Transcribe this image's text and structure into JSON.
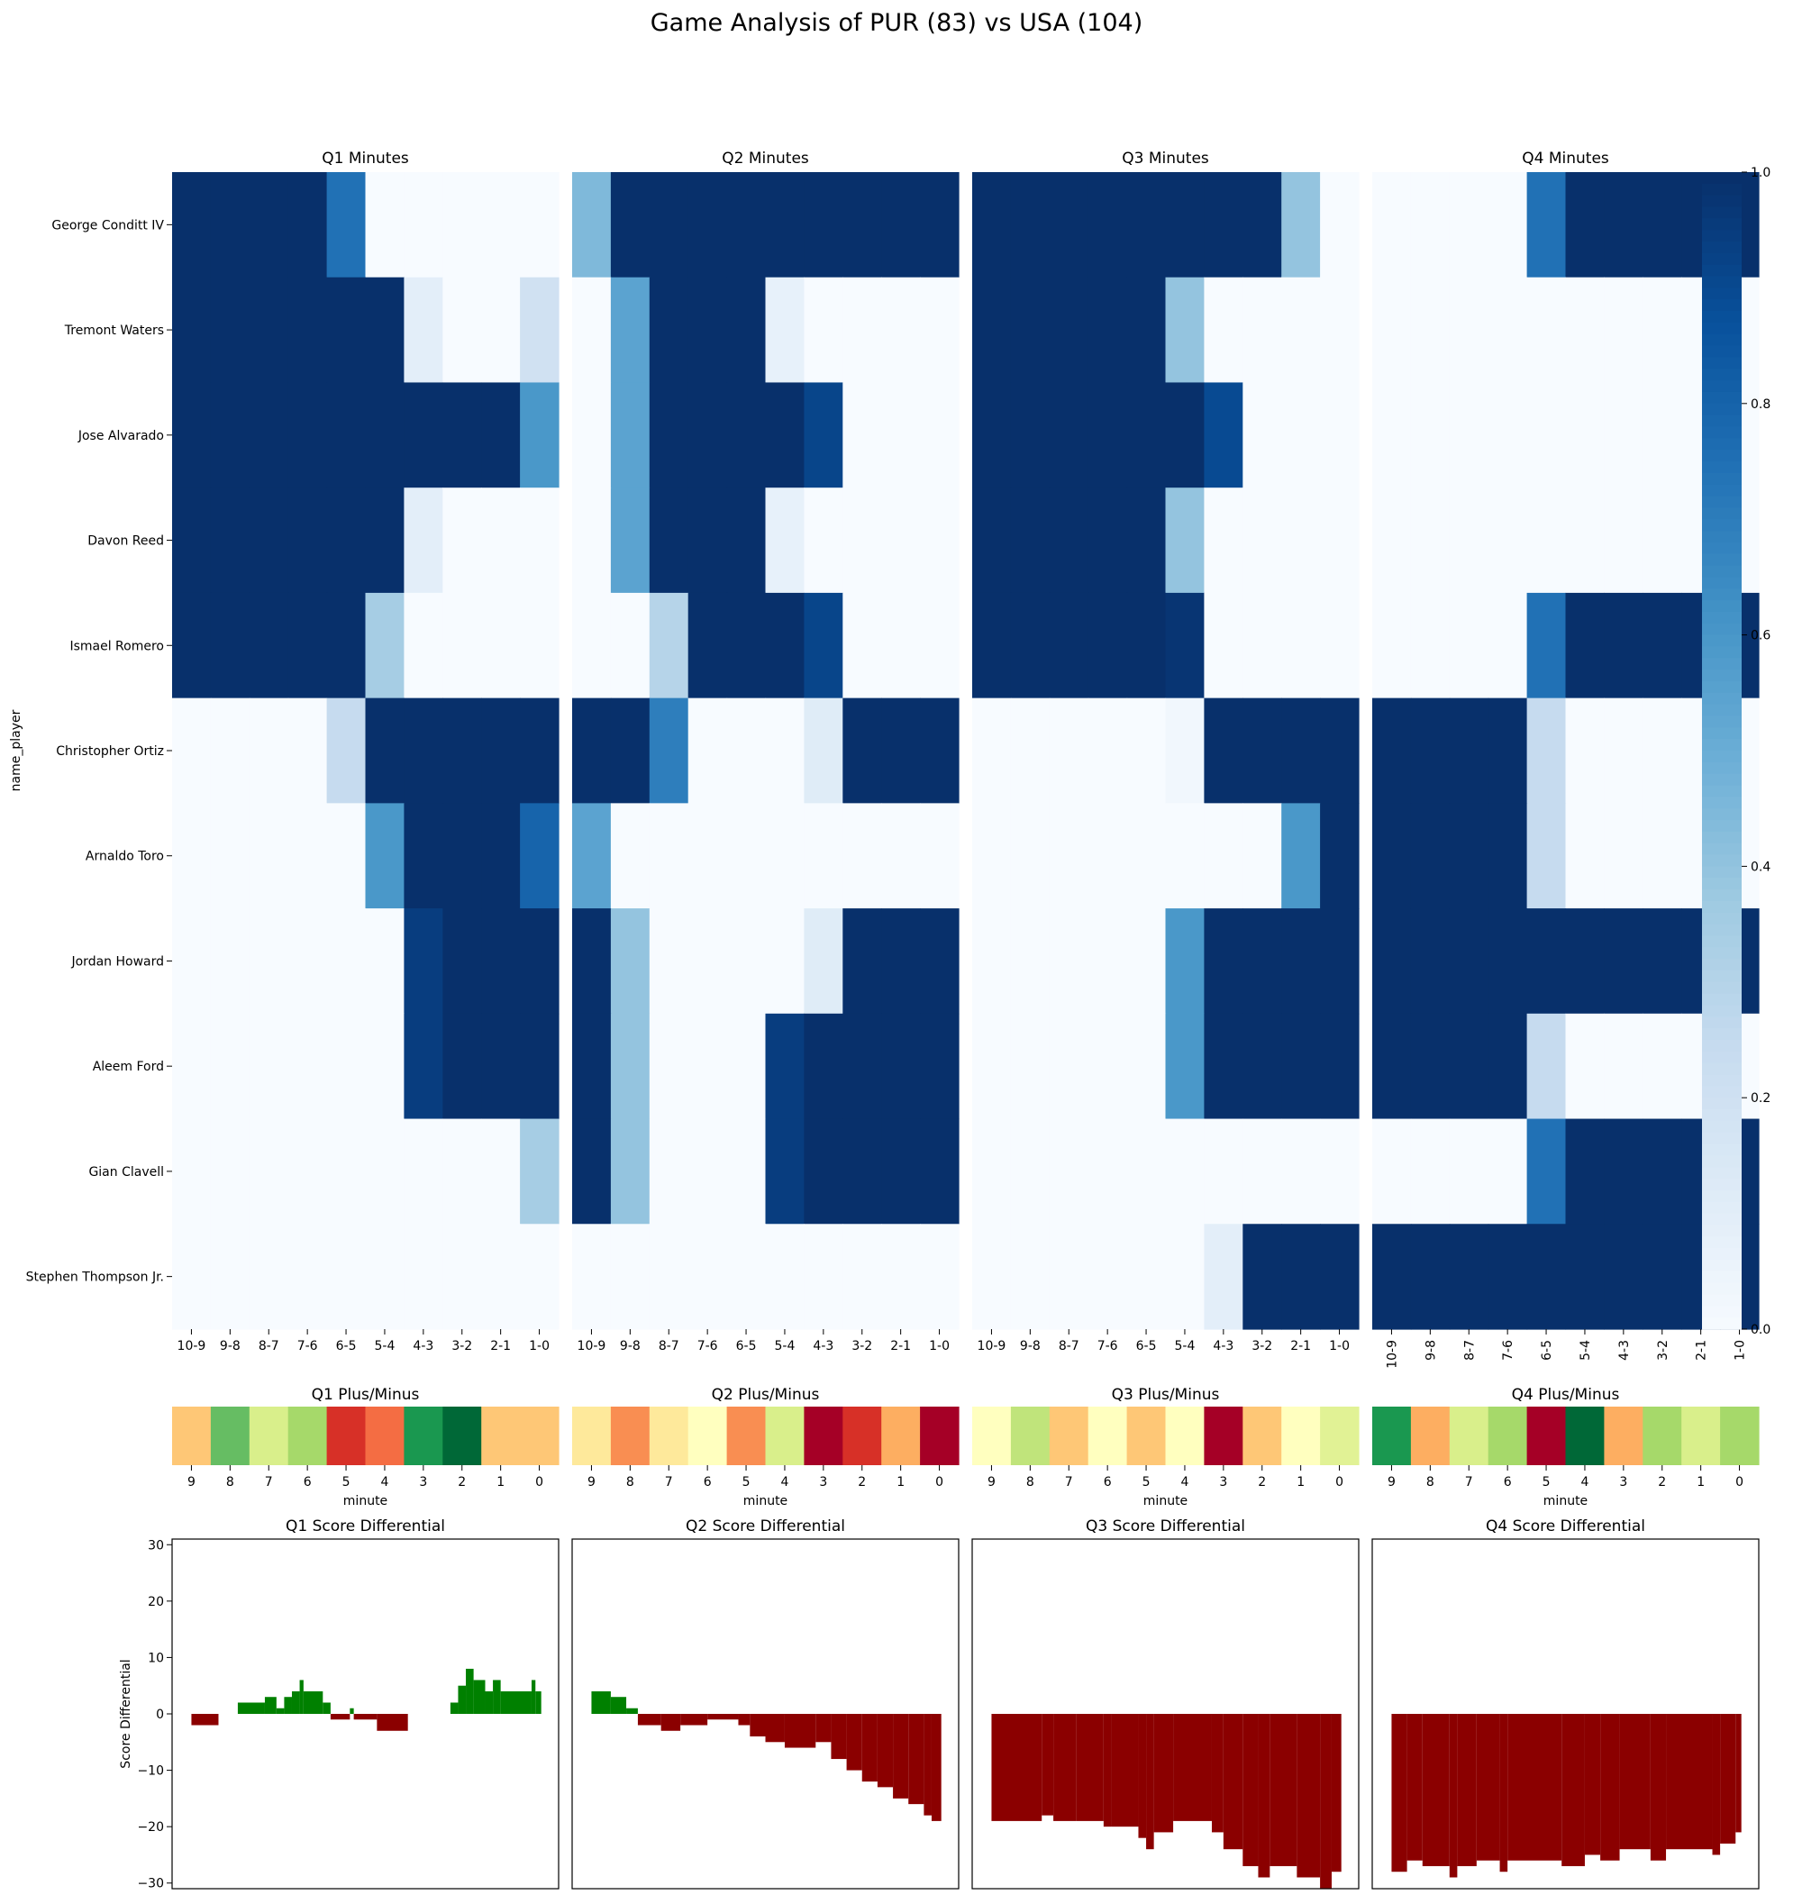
{
  "title": "Game Analysis of PUR (83) vs USA (104)",
  "colors": {
    "blues_scale": [
      "#f7fbff",
      "#deebf7",
      "#c6dbef",
      "#9ecae1",
      "#6baed6",
      "#4292c6",
      "#2171b5",
      "#08519c",
      "#08306b"
    ],
    "pm_scale": [
      "#a50026",
      "#d73027",
      "#f46d43",
      "#fdae61",
      "#fee08b",
      "#ffffbf",
      "#d9ef8b",
      "#a6d96a",
      "#66bd63",
      "#1a9850",
      "#006837"
    ],
    "diff_positive": "#008000",
    "diff_negative": "#8b0000"
  },
  "chart_data": [
    {
      "type": "heatmap",
      "name": "minutes",
      "titles": [
        "Q1 Minutes",
        "Q2 Minutes",
        "Q3 Minutes",
        "Q4 Minutes"
      ],
      "ylabel": "name_player",
      "players": [
        "George Conditt IV",
        "Tremont Waters",
        "Jose Alvarado",
        "Davon Reed",
        "Ismael Romero",
        "Christopher Ortiz",
        "Arnaldo Toro",
        "Jordan Howard",
        "Aleem Ford",
        "Gian Clavell",
        "Stephen Thompson Jr."
      ],
      "minutes": [
        "10-9",
        "9-8",
        "8-7",
        "7-6",
        "6-5",
        "5-4",
        "4-3",
        "3-2",
        "2-1",
        "1-0"
      ],
      "colorbar": {
        "min": 0.0,
        "max": 1.0,
        "ticks": [
          "0.0",
          "0.2",
          "0.4",
          "0.6",
          "0.8",
          "1.0"
        ]
      },
      "quarters": [
        [
          [
            1,
            1,
            1,
            1,
            0.75,
            0,
            0,
            0,
            0,
            0
          ],
          [
            1,
            1,
            1,
            1,
            1,
            1,
            0.1,
            0,
            0,
            0.2
          ],
          [
            1,
            1,
            1,
            1,
            1,
            1,
            1,
            1,
            1,
            0.6
          ],
          [
            1,
            1,
            1,
            1,
            1,
            1,
            0.1,
            0,
            0,
            0
          ],
          [
            1,
            1,
            1,
            1,
            1,
            0.35,
            0,
            0,
            0,
            0
          ],
          [
            0,
            0,
            0,
            0,
            0.25,
            1,
            1,
            1,
            1,
            1
          ],
          [
            0,
            0,
            0,
            0,
            0,
            0.6,
            1,
            1,
            1,
            0.8
          ],
          [
            0,
            0,
            0,
            0,
            0,
            0,
            0.95,
            1,
            1,
            1
          ],
          [
            0,
            0,
            0,
            0,
            0,
            0,
            0.95,
            1,
            1,
            1
          ],
          [
            0,
            0,
            0,
            0,
            0,
            0,
            0,
            0,
            0,
            0.35
          ],
          [
            0,
            0,
            0,
            0,
            0,
            0,
            0,
            0,
            0,
            0
          ]
        ],
        [
          [
            0.45,
            1,
            1,
            1,
            1,
            1,
            1,
            1,
            1,
            1
          ],
          [
            0,
            0.55,
            1,
            1,
            1,
            0.08,
            0,
            0,
            0,
            0
          ],
          [
            0,
            0.55,
            1,
            1,
            1,
            1,
            0.92,
            0,
            0,
            0
          ],
          [
            0,
            0.55,
            1,
            1,
            1,
            0.08,
            0,
            0,
            0,
            0
          ],
          [
            0,
            0,
            0.3,
            1,
            1,
            1,
            0.92,
            0,
            0,
            0
          ],
          [
            1,
            1,
            0.7,
            0,
            0,
            0,
            0.12,
            1,
            1,
            1
          ],
          [
            0.55,
            0,
            0,
            0,
            0,
            0,
            0,
            0,
            0,
            0
          ],
          [
            1,
            0.4,
            0,
            0,
            0,
            0,
            0.12,
            1,
            1,
            1
          ],
          [
            1,
            0.4,
            0,
            0,
            0,
            0.95,
            1,
            1,
            1,
            1
          ],
          [
            1,
            0.4,
            0,
            0,
            0,
            0.95,
            1,
            1,
            1,
            1
          ],
          [
            0,
            0,
            0,
            0,
            0,
            0,
            0,
            0,
            0,
            0
          ]
        ],
        [
          [
            1,
            1,
            1,
            1,
            1,
            1,
            1,
            1,
            0.4,
            0
          ],
          [
            1,
            1,
            1,
            1,
            1,
            0.4,
            0,
            0,
            0,
            0
          ],
          [
            1,
            1,
            1,
            1,
            1,
            1,
            0.9,
            0,
            0,
            0
          ],
          [
            1,
            1,
            1,
            1,
            1,
            0.4,
            0,
            0,
            0,
            0
          ],
          [
            1,
            1,
            1,
            1,
            1,
            0.98,
            0,
            0,
            0,
            0
          ],
          [
            0,
            0,
            0,
            0,
            0,
            0.03,
            1,
            1,
            1,
            1
          ],
          [
            0,
            0,
            0,
            0,
            0,
            0,
            0,
            0,
            0.6,
            1
          ],
          [
            0,
            0,
            0,
            0,
            0,
            0.6,
            1,
            1,
            1,
            1
          ],
          [
            0,
            0,
            0,
            0,
            0,
            0.6,
            1,
            1,
            1,
            1
          ],
          [
            0,
            0,
            0,
            0,
            0,
            0,
            0,
            0,
            0,
            0
          ],
          [
            0,
            0,
            0,
            0,
            0,
            0,
            0.1,
            1,
            1,
            1
          ]
        ],
        [
          [
            0,
            0,
            0,
            0,
            0.75,
            1,
            1,
            1,
            1,
            1
          ],
          [
            0,
            0,
            0,
            0,
            0,
            0,
            0,
            0,
            0,
            0
          ],
          [
            0,
            0,
            0,
            0,
            0,
            0,
            0,
            0,
            0,
            0
          ],
          [
            0,
            0,
            0,
            0,
            0,
            0,
            0,
            0,
            0,
            0
          ],
          [
            0,
            0,
            0,
            0,
            0.75,
            1,
            1,
            1,
            1,
            1
          ],
          [
            1,
            1,
            1,
            1,
            0.25,
            0,
            0,
            0,
            0,
            0
          ],
          [
            1,
            1,
            1,
            1,
            0.25,
            0,
            0,
            0,
            0,
            0
          ],
          [
            1,
            1,
            1,
            1,
            1,
            1,
            1,
            1,
            1,
            1
          ],
          [
            1,
            1,
            1,
            1,
            0.25,
            0,
            0,
            0,
            0,
            0
          ],
          [
            0,
            0,
            0,
            0,
            0.75,
            1,
            1,
            1,
            1,
            1
          ],
          [
            1,
            1,
            1,
            1,
            1,
            1,
            1,
            1,
            1,
            1
          ]
        ]
      ]
    },
    {
      "type": "heatmap",
      "name": "plus_minus",
      "titles": [
        "Q1 Plus/Minus",
        "Q2 Plus/Minus",
        "Q3 Plus/Minus",
        "Q4 Plus/Minus"
      ],
      "xlabel": "minute",
      "minutes": [
        "9",
        "8",
        "7",
        "6",
        "5",
        "4",
        "3",
        "2",
        "1",
        "0"
      ],
      "vmin": -5,
      "vmax": 5,
      "quarters": [
        [
          -1.5,
          3,
          1,
          2,
          -4,
          -3,
          4,
          5,
          -1.5,
          -1.5
        ],
        [
          -0.7,
          -2.5,
          -0.7,
          0,
          -2.5,
          1,
          -5,
          -4,
          -2,
          -5
        ],
        [
          0,
          1.5,
          -1.5,
          0,
          -1.5,
          0,
          -5,
          -1.5,
          0,
          0.8
        ],
        [
          4,
          -2,
          1,
          2,
          -5,
          5,
          -2,
          2,
          1,
          2
        ]
      ]
    },
    {
      "type": "bar",
      "name": "score_differential",
      "titles": [
        "Q1 Score Differential",
        "Q2 Score Differential",
        "Q3 Score Differential",
        "Q4 Score Differential"
      ],
      "ylabel": "Score Differential",
      "ylim": [
        -31,
        31
      ],
      "yticks": [
        -30,
        -20,
        -10,
        0,
        10,
        20,
        30
      ],
      "quarters": [
        [
          {
            "from": 0.05,
            "to": 0.12,
            "value": -2
          },
          {
            "from": 0.17,
            "to": 0.24,
            "value": 2
          },
          {
            "from": 0.24,
            "to": 0.27,
            "value": 3
          },
          {
            "from": 0.27,
            "to": 0.29,
            "value": 1
          },
          {
            "from": 0.29,
            "to": 0.31,
            "value": 3
          },
          {
            "from": 0.31,
            "to": 0.33,
            "value": 4
          },
          {
            "from": 0.33,
            "to": 0.34,
            "value": 6
          },
          {
            "from": 0.34,
            "to": 0.39,
            "value": 4
          },
          {
            "from": 0.39,
            "to": 0.41,
            "value": 2
          },
          {
            "from": 0.41,
            "to": 0.46,
            "value": -1
          },
          {
            "from": 0.46,
            "to": 0.47,
            "value": 1
          },
          {
            "from": 0.47,
            "to": 0.53,
            "value": -1
          },
          {
            "from": 0.53,
            "to": 0.61,
            "value": -3
          },
          {
            "from": 0.72,
            "to": 0.74,
            "value": 2
          },
          {
            "from": 0.74,
            "to": 0.76,
            "value": 5
          },
          {
            "from": 0.76,
            "to": 0.78,
            "value": 8
          },
          {
            "from": 0.78,
            "to": 0.81,
            "value": 6
          },
          {
            "from": 0.81,
            "to": 0.83,
            "value": 4
          },
          {
            "from": 0.83,
            "to": 0.85,
            "value": 6
          },
          {
            "from": 0.85,
            "to": 0.93,
            "value": 4
          },
          {
            "from": 0.93,
            "to": 0.94,
            "value": 6
          },
          {
            "from": 0.94,
            "to": 0.955,
            "value": 4
          }
        ],
        [
          {
            "from": 0.05,
            "to": 0.1,
            "value": 4
          },
          {
            "from": 0.1,
            "to": 0.14,
            "value": 3
          },
          {
            "from": 0.14,
            "to": 0.17,
            "value": 1
          },
          {
            "from": 0.17,
            "to": 0.23,
            "value": -2
          },
          {
            "from": 0.23,
            "to": 0.28,
            "value": -3
          },
          {
            "from": 0.28,
            "to": 0.35,
            "value": -2
          },
          {
            "from": 0.35,
            "to": 0.43,
            "value": -1
          },
          {
            "from": 0.43,
            "to": 0.46,
            "value": -2
          },
          {
            "from": 0.46,
            "to": 0.5,
            "value": -4
          },
          {
            "from": 0.5,
            "to": 0.55,
            "value": -5
          },
          {
            "from": 0.55,
            "to": 0.63,
            "value": -6
          },
          {
            "from": 0.63,
            "to": 0.67,
            "value": -5
          },
          {
            "from": 0.67,
            "to": 0.71,
            "value": -8
          },
          {
            "from": 0.71,
            "to": 0.75,
            "value": -10
          },
          {
            "from": 0.75,
            "to": 0.79,
            "value": -12
          },
          {
            "from": 0.79,
            "to": 0.83,
            "value": -13
          },
          {
            "from": 0.83,
            "to": 0.87,
            "value": -15
          },
          {
            "from": 0.87,
            "to": 0.91,
            "value": -16
          },
          {
            "from": 0.91,
            "to": 0.93,
            "value": -18
          },
          {
            "from": 0.93,
            "to": 0.955,
            "value": -19
          }
        ],
        [
          {
            "from": 0.05,
            "to": 0.18,
            "value": -19
          },
          {
            "from": 0.18,
            "to": 0.21,
            "value": -18
          },
          {
            "from": 0.21,
            "to": 0.27,
            "value": -19
          },
          {
            "from": 0.27,
            "to": 0.34,
            "value": -19
          },
          {
            "from": 0.34,
            "to": 0.36,
            "value": -20
          },
          {
            "from": 0.36,
            "to": 0.43,
            "value": -20
          },
          {
            "from": 0.43,
            "to": 0.45,
            "value": -22
          },
          {
            "from": 0.45,
            "to": 0.47,
            "value": -24
          },
          {
            "from": 0.47,
            "to": 0.52,
            "value": -21
          },
          {
            "from": 0.52,
            "to": 0.62,
            "value": -19
          },
          {
            "from": 0.62,
            "to": 0.65,
            "value": -21
          },
          {
            "from": 0.65,
            "to": 0.7,
            "value": -24
          },
          {
            "from": 0.7,
            "to": 0.74,
            "value": -27
          },
          {
            "from": 0.74,
            "to": 0.77,
            "value": -29
          },
          {
            "from": 0.77,
            "to": 0.84,
            "value": -27
          },
          {
            "from": 0.84,
            "to": 0.9,
            "value": -29
          },
          {
            "from": 0.9,
            "to": 0.93,
            "value": -31
          },
          {
            "from": 0.93,
            "to": 0.955,
            "value": -28
          }
        ],
        [
          {
            "from": 0.05,
            "to": 0.09,
            "value": -28
          },
          {
            "from": 0.09,
            "to": 0.13,
            "value": -26
          },
          {
            "from": 0.13,
            "to": 0.2,
            "value": -27
          },
          {
            "from": 0.2,
            "to": 0.22,
            "value": -29
          },
          {
            "from": 0.22,
            "to": 0.27,
            "value": -27
          },
          {
            "from": 0.27,
            "to": 0.33,
            "value": -26
          },
          {
            "from": 0.33,
            "to": 0.35,
            "value": -28
          },
          {
            "from": 0.35,
            "to": 0.49,
            "value": -26
          },
          {
            "from": 0.49,
            "to": 0.55,
            "value": -27
          },
          {
            "from": 0.55,
            "to": 0.59,
            "value": -25
          },
          {
            "from": 0.59,
            "to": 0.64,
            "value": -26
          },
          {
            "from": 0.64,
            "to": 0.72,
            "value": -24
          },
          {
            "from": 0.72,
            "to": 0.76,
            "value": -26
          },
          {
            "from": 0.76,
            "to": 0.88,
            "value": -24
          },
          {
            "from": 0.88,
            "to": 0.9,
            "value": -25
          },
          {
            "from": 0.9,
            "to": 0.94,
            "value": -23
          },
          {
            "from": 0.94,
            "to": 0.955,
            "value": -21
          }
        ]
      ]
    }
  ]
}
